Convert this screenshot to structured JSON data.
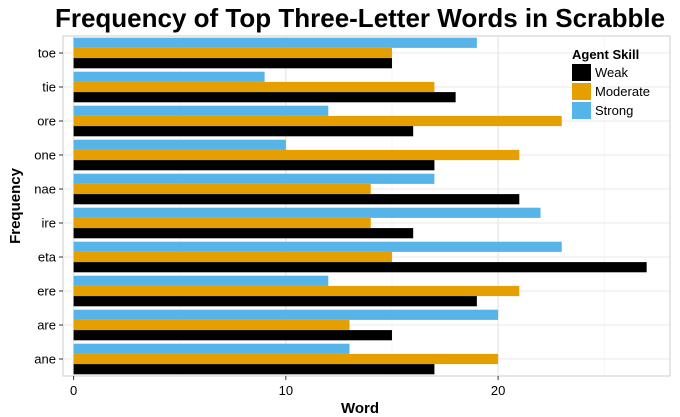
{
  "chart_data": {
    "type": "bar",
    "orientation": "horizontal",
    "title": "Frequency of Top Three-Letter Words in Scrabble",
    "xlabel": "Word",
    "ylabel": "Frequency",
    "categories": [
      "toe",
      "tie",
      "ore",
      "one",
      "nae",
      "ire",
      "eta",
      "ere",
      "are",
      "ane"
    ],
    "series": [
      {
        "name": "Weak",
        "color": "#000000",
        "values": [
          15,
          18,
          16,
          17,
          21,
          16,
          27,
          19,
          15,
          17
        ]
      },
      {
        "name": "Moderate",
        "color": "#E69F00",
        "values": [
          15,
          17,
          23,
          21,
          14,
          14,
          15,
          21,
          13,
          20
        ]
      },
      {
        "name": "Strong",
        "color": "#56B4E9",
        "values": [
          19,
          9,
          12,
          10,
          17,
          22,
          23,
          12,
          20,
          13
        ]
      }
    ],
    "xlim": [
      -0.5,
      28.1
    ],
    "xticks": [
      0,
      10,
      20
    ],
    "legend": {
      "title": "Agent Skill",
      "position": "top-right"
    },
    "grid": true
  }
}
